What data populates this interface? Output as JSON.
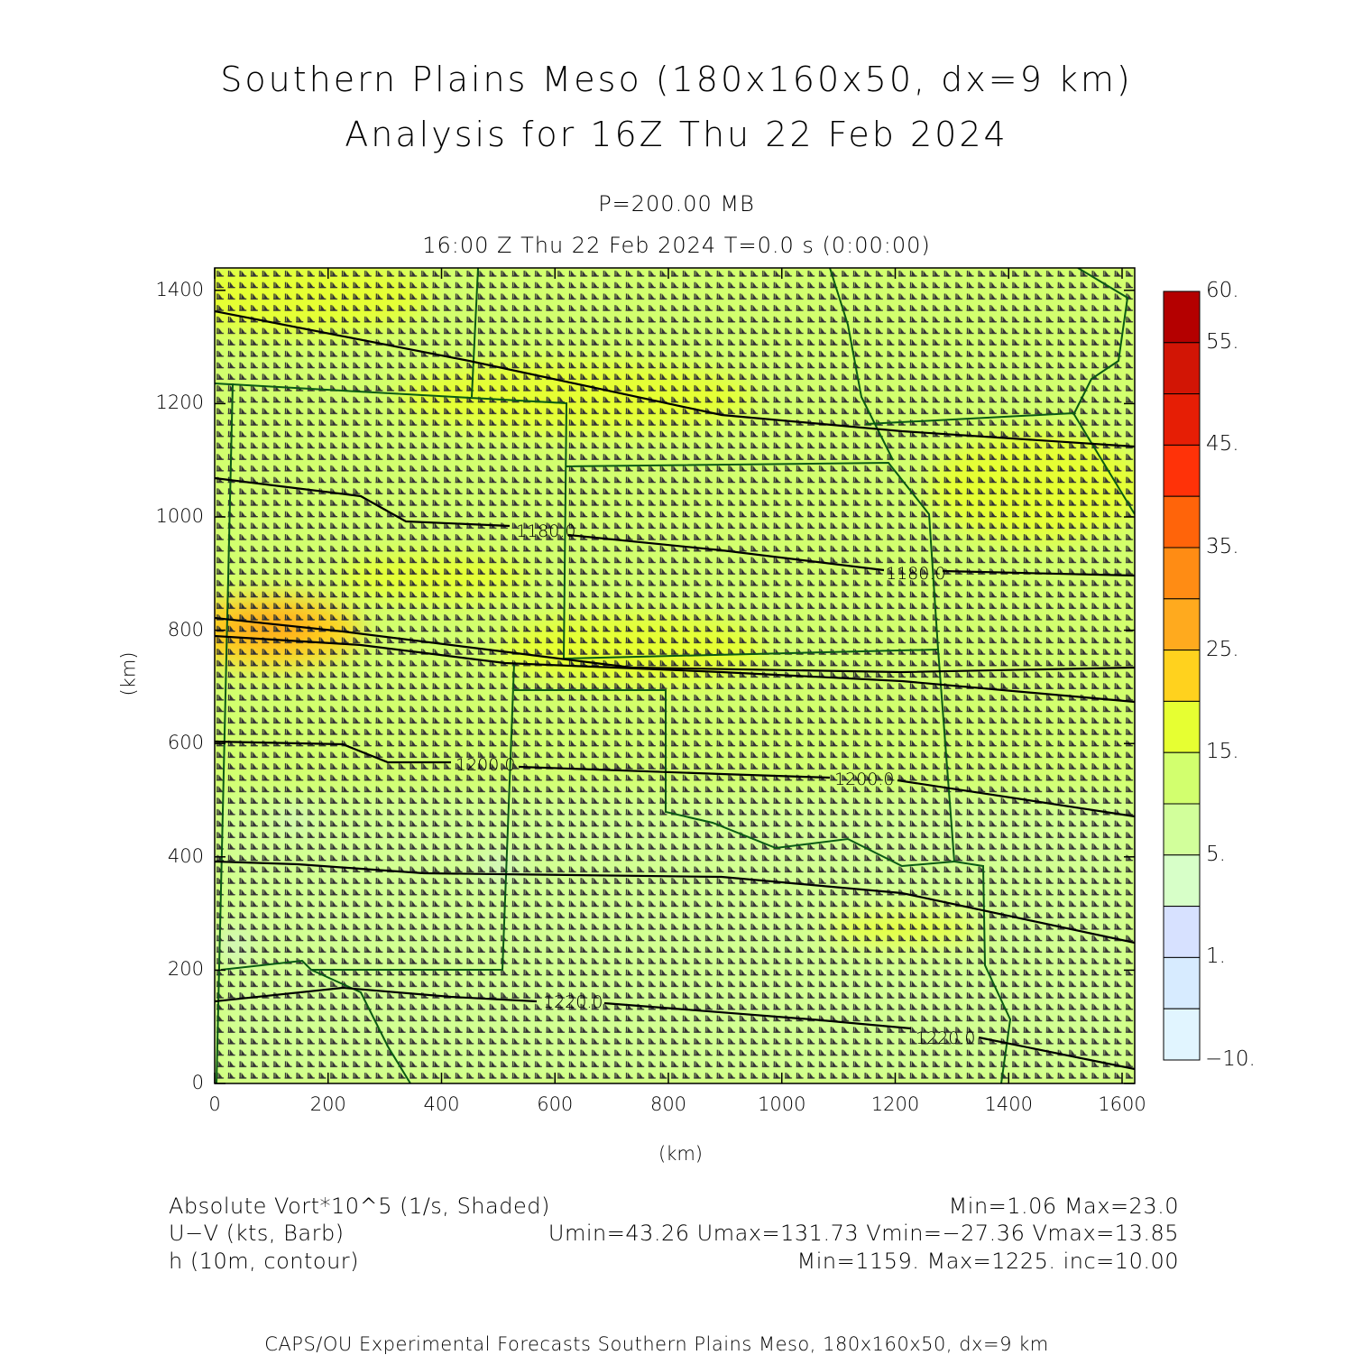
{
  "title": {
    "line1": "Southern Plains Meso (180x160x50, dx=9 km)",
    "line2": "Analysis for 16Z Thu 22 Feb 2024"
  },
  "subtitle": {
    "level": "P=200.00 MB",
    "time": "16:00 Z Thu 22 Feb 2024    T=0.0 s (0:00:00)"
  },
  "axes": {
    "xlabel": "(km)",
    "ylabel": "(km)",
    "xticks": [
      "0",
      "200",
      "400",
      "600",
      "800",
      "1000",
      "1200",
      "1400",
      "1600"
    ],
    "yticks": [
      "0",
      "200",
      "400",
      "600",
      "800",
      "1000",
      "1200",
      "1400"
    ]
  },
  "contour_labels": [
    "1180.0",
    "1180.0",
    "1200.0",
    "1200.0",
    "1220.0",
    "1220.0"
  ],
  "colorbar": {
    "labels": [
      "60.",
      "55.",
      "45.",
      "35.",
      "25.",
      "15.",
      "5.",
      "1.",
      "−10."
    ],
    "colors": [
      "#b40000",
      "#d21505",
      "#e61e05",
      "#ff3208",
      "#ff640a",
      "#ff8c14",
      "#ffaa1e",
      "#ffd21e",
      "#e6ff32",
      "#d2ff6e",
      "#d2ff9b",
      "#d7ffc8",
      "#d7e1ff",
      "#d7ebff",
      "#e1f5ff"
    ]
  },
  "legend": {
    "field1": "Absolute Vort*10^5 (1/s, Shaded)",
    "field1_stats": "Min=1.06 Max=23.0",
    "field2": "U−V (kts, Barb)",
    "field2_stats": "Umin=43.26 Umax=131.73 Vmin=−27.36 Vmax=13.85",
    "field3": "h (10m, contour)",
    "field3_stats": "Min=1159. Max=1225. inc=10.00"
  },
  "footer": "CAPS/OU Experimental Forecasts  Southern Plains Meso, 180x160x50, dx=9 km"
}
